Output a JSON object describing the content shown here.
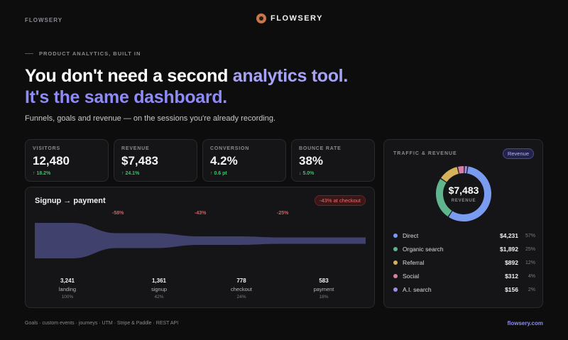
{
  "header": {
    "brand_left": "FLOWSERY",
    "brand_center": "FLOWSERY"
  },
  "hero": {
    "eyebrow": "PRODUCT ANALYTICS, BUILT IN",
    "line1_plain": "You don't need a second ",
    "line1_accent": "analytics tool.",
    "line2": "It's the same dashboard.",
    "sub": "Funnels, goals and revenue — on the sessions you're already recording."
  },
  "kpis": [
    {
      "label": "VISITORS",
      "value": "12,480",
      "delta": "↑ 18.2%"
    },
    {
      "label": "REVENUE",
      "value": "$7,483",
      "delta": "↑ 24.1%"
    },
    {
      "label": "CONVERSION",
      "value": "4.2%",
      "delta": "↑ 0.6 pt"
    },
    {
      "label": "BOUNCE RATE",
      "value": "38%",
      "delta": "↓ 5.0%"
    }
  ],
  "funnel": {
    "title": "Signup → payment",
    "badge": "-43% at checkout",
    "drops": [
      "-58%",
      "-43%",
      "-25%"
    ],
    "stages": [
      {
        "count": "3,241",
        "name": "landing",
        "pct": "100%"
      },
      {
        "count": "1,361",
        "name": "signup",
        "pct": "42%"
      },
      {
        "count": "778",
        "name": "checkout",
        "pct": "24%"
      },
      {
        "count": "583",
        "name": "payment",
        "pct": "18%"
      }
    ],
    "levels": [
      1.0,
      0.42,
      0.24,
      0.18
    ],
    "color": "#41416e"
  },
  "revenue": {
    "header": "TRAFFIC & REVENUE",
    "pill": "Revenue",
    "total": "$7,483",
    "total_caption": "REVENUE",
    "sources": [
      {
        "name": "Direct",
        "amount": "$4,231",
        "pct": "57%",
        "share": 57,
        "color": "#7a9cf0"
      },
      {
        "name": "Organic search",
        "amount": "$1,892",
        "pct": "25%",
        "share": 25,
        "color": "#5fb58e"
      },
      {
        "name": "Referral",
        "amount": "$892",
        "pct": "12%",
        "share": 12,
        "color": "#d6b25a"
      },
      {
        "name": "Social",
        "amount": "$312",
        "pct": "4%",
        "share": 4,
        "color": "#d97fa6"
      },
      {
        "name": "A.I. search",
        "amount": "$156",
        "pct": "2%",
        "share": 2,
        "color": "#9a8ee6"
      }
    ]
  },
  "footer": {
    "features": "Goals · custom events · journeys · UTM · Stripe & Paddle · REST API",
    "link": "flowsery.com"
  }
}
